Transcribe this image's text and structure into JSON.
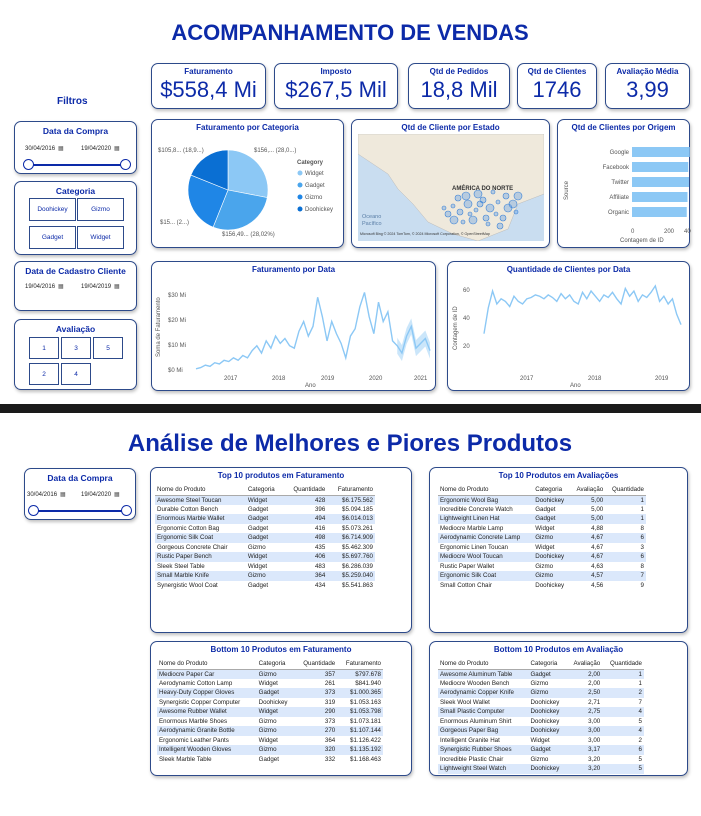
{
  "top_title": "ACOMPANHAMENTO DE VENDAS",
  "filters_label": "Filtros",
  "kpis": [
    {
      "label": "Faturamento",
      "value": "$558,4 Mi"
    },
    {
      "label": "Imposto",
      "value": "$267,5 Mil"
    },
    {
      "label": "Qtd de Pedidos",
      "value": "18,8 Mil"
    },
    {
      "label": "Qtd de Clientes",
      "value": "1746"
    },
    {
      "label": "Avaliação Média",
      "value": "3,99"
    }
  ],
  "slicer_purchase": {
    "title": "Data da Compra",
    "from": "30/04/2016",
    "to": "19/04/2020"
  },
  "slicer_category": {
    "title": "Categoria",
    "items": [
      "Doohickey",
      "Gizmo",
      "Gadget",
      "Widget"
    ]
  },
  "slicer_register": {
    "title": "Data de Cadastro Cliente",
    "from": "19/04/2016",
    "to": "19/04/2019"
  },
  "slicer_rating": {
    "title": "Avaliação",
    "items": [
      "1",
      "3",
      "5",
      "2",
      "4"
    ]
  },
  "pie": {
    "title": "Faturamento por Categoria",
    "legend_title": "Category",
    "legend": [
      "Widget",
      "Gadget",
      "Gizmo",
      "Doohickey"
    ],
    "labels": [
      "$105,8... (18,9...)",
      "$156,... (28,0...)",
      "$15... (2...)",
      "$156,49... (28,02%)"
    ],
    "colors": [
      "#8cc8f5",
      "#4aa5ec",
      "#1f86e6",
      "#0a6fd3"
    ]
  },
  "map": {
    "title": "Qtd de Cliente por Estado",
    "region_label": "AMÉRICA DO NORTE",
    "ocean_label": "Oceano Pacífico",
    "attribution": "Microsoft Bing   © 2024 TomTom, © 2024 Microsoft Corporation, © OpenStreetMap"
  },
  "origin": {
    "title": "Qtd de Clientes por Origem",
    "ylabel": "Source",
    "xlabel": "Contagem de ID",
    "ticks": [
      "0",
      "200",
      "400"
    ]
  },
  "line1": {
    "title": "Faturamento por Data",
    "ylabel": "Soma de Faturamento",
    "xlabel": "Ano",
    "yticks": [
      "$30 Mi",
      "$20 Mi",
      "$10 Mi",
      "$0 Mi"
    ],
    "xticks": [
      "2017",
      "2018",
      "2019",
      "2020",
      "2021"
    ]
  },
  "line2": {
    "title": "Quantidade de Clientes por Data",
    "ylabel": "Contagem de ID",
    "xlabel": "Ano",
    "yticks": [
      "60",
      "40",
      "20"
    ],
    "xticks": [
      "2017",
      "2018",
      "2019"
    ]
  },
  "chart_data": [
    {
      "type": "pie",
      "title": "Faturamento por Categoria",
      "categories": [
        "Widget",
        "Gadget",
        "Gizmo",
        "Doohickey"
      ],
      "values": [
        28.0,
        28.02,
        25.0,
        18.9
      ]
    },
    {
      "type": "bar",
      "title": "Qtd de Clientes por Origem",
      "categories": [
        "Google",
        "Facebook",
        "Twitter",
        "Affiliate",
        "Organic"
      ],
      "values": [
        385,
        375,
        380,
        370,
        365
      ],
      "xlim": [
        0,
        400
      ]
    },
    {
      "type": "line",
      "title": "Faturamento por Data",
      "x_range": [
        "2016",
        "2021"
      ],
      "ylim": [
        0,
        33
      ],
      "values": [
        0.5,
        1,
        2,
        1.5,
        3,
        2.5,
        4,
        3.5,
        5,
        4,
        6,
        5,
        8,
        10,
        7,
        12,
        9,
        14,
        11,
        13,
        10,
        9,
        16,
        20,
        14,
        18,
        30,
        22,
        12,
        20,
        15,
        11,
        5,
        14,
        17,
        26,
        32,
        22,
        15,
        28,
        20,
        24,
        12,
        10,
        7,
        14,
        18,
        9,
        11,
        13,
        8
      ]
    },
    {
      "type": "line",
      "title": "Quantidade de Clientes por Data",
      "x_range": [
        "2016",
        "2019"
      ],
      "ylim": [
        0,
        65
      ],
      "values": [
        25,
        45,
        58,
        48,
        52,
        50,
        46,
        54,
        50,
        48,
        52,
        53,
        55,
        54,
        52,
        55,
        53,
        50,
        56,
        52,
        55,
        50,
        48,
        57,
        52,
        58,
        54,
        50,
        55,
        53,
        57,
        52,
        48,
        60,
        54,
        58,
        50,
        55,
        53,
        57,
        62,
        50,
        54,
        48,
        52,
        40,
        32
      ]
    }
  ],
  "bottom_title": "Análise de Melhores e Piores Produtos",
  "slicer_purchase2": {
    "title": "Data da Compra",
    "from": "30/04/2016",
    "to": "19/04/2020"
  },
  "top_revenue": {
    "title": "Top 10 produtos em Faturamento",
    "headers": [
      "Nome do Produto",
      "Categoria",
      "Quantidade",
      "Faturamento"
    ],
    "rows": [
      [
        "Awesome Steel Toucan",
        "Widget",
        "428",
        "$6.175.562"
      ],
      [
        "Durable Cotton Bench",
        "Gadget",
        "396",
        "$5.094.185"
      ],
      [
        "Enormous Marble Wallet",
        "Gadget",
        "494",
        "$6.014.013"
      ],
      [
        "Ergonomic Cotton Bag",
        "Gadget",
        "416",
        "$5.073.261"
      ],
      [
        "Ergonomic Silk Coat",
        "Gadget",
        "498",
        "$6.714.909"
      ],
      [
        "Gorgeous Concrete Chair",
        "Gizmo",
        "435",
        "$5.462.309"
      ],
      [
        "Rustic Paper Bench",
        "Widget",
        "406",
        "$5.697.760"
      ],
      [
        "Sleek Steel Table",
        "Widget",
        "483",
        "$6.286.039"
      ],
      [
        "Small Marble Knife",
        "Gizmo",
        "364",
        "$5.259.040"
      ],
      [
        "Synergistic Wool Coat",
        "Gadget",
        "434",
        "$5.541.863"
      ]
    ]
  },
  "top_rating": {
    "title": "Top 10 Produtos em Avaliações",
    "headers": [
      "Nome do Produto",
      "Categoria",
      "Avaliação",
      "Quantidade"
    ],
    "rows": [
      [
        "Ergonomic Wool Bag",
        "Doohickey",
        "5,00",
        "1"
      ],
      [
        "Incredible Concrete Watch",
        "Gadget",
        "5,00",
        "1"
      ],
      [
        "Lightweight Linen Hat",
        "Gadget",
        "5,00",
        "1"
      ],
      [
        "Mediocre Marble Lamp",
        "Widget",
        "4,88",
        "8"
      ],
      [
        "Aerodynamic Concrete Lamp",
        "Gizmo",
        "4,67",
        "6"
      ],
      [
        "Ergonomic Linen Toucan",
        "Widget",
        "4,67",
        "3"
      ],
      [
        "Mediocre Wool Toucan",
        "Doohickey",
        "4,67",
        "6"
      ],
      [
        "Rustic Paper Wallet",
        "Gizmo",
        "4,63",
        "8"
      ],
      [
        "Ergonomic Silk Coat",
        "Gizmo",
        "4,57",
        "7"
      ],
      [
        "Small Cotton Chair",
        "Doohickey",
        "4,56",
        "9"
      ]
    ]
  },
  "bottom_revenue": {
    "title": "Bottom 10 Produtos em Faturamento",
    "headers": [
      "Nome do Produto",
      "Categoria",
      "Quantidade",
      "Faturamento"
    ],
    "rows": [
      [
        "Mediocre Paper Car",
        "Gizmo",
        "357",
        "$797.678"
      ],
      [
        "Aerodynamic Cotton Lamp",
        "Widget",
        "261",
        "$841.940"
      ],
      [
        "Heavy-Duty Copper Gloves",
        "Gadget",
        "373",
        "$1.000.365"
      ],
      [
        "Synergistic Copper Computer",
        "Doohickey",
        "319",
        "$1.053.163"
      ],
      [
        "Awesome Rubber Wallet",
        "Widget",
        "290",
        "$1.053.798"
      ],
      [
        "Enormous Marble Shoes",
        "Gizmo",
        "373",
        "$1.073.181"
      ],
      [
        "Aerodynamic Granite Bottle",
        "Gizmo",
        "270",
        "$1.107.144"
      ],
      [
        "Ergonomic Leather Pants",
        "Widget",
        "364",
        "$1.126.422"
      ],
      [
        "Intelligent Wooden Gloves",
        "Gizmo",
        "320",
        "$1.135.192"
      ],
      [
        "Sleek Marble Table",
        "Gadget",
        "332",
        "$1.168.463"
      ]
    ]
  },
  "bottom_rating": {
    "title": "Bottom 10 Produtos em Avaliação",
    "headers": [
      "Nome do Produto",
      "Categoria",
      "Avaliação",
      "Quantidade"
    ],
    "rows": [
      [
        "Awesome Aluminum Table",
        "Gadget",
        "2,00",
        "1"
      ],
      [
        "Mediocre Wooden Bench",
        "Gizmo",
        "2,00",
        "1"
      ],
      [
        "Aerodynamic Copper Knife",
        "Gizmo",
        "2,50",
        "2"
      ],
      [
        "Sleek Wool Wallet",
        "Doohickey",
        "2,71",
        "7"
      ],
      [
        "Small Plastic Computer",
        "Doohickey",
        "2,75",
        "4"
      ],
      [
        "Enormous Aluminum Shirt",
        "Doohickey",
        "3,00",
        "5"
      ],
      [
        "Gorgeous Paper Bag",
        "Doohickey",
        "3,00",
        "4"
      ],
      [
        "Intelligent Granite Hat",
        "Widget",
        "3,00",
        "2"
      ],
      [
        "Synergistic Rubber Shoes",
        "Gadget",
        "3,17",
        "6"
      ],
      [
        "Incredible Plastic Chair",
        "Gizmo",
        "3,20",
        "5"
      ],
      [
        "Lightweight Steel Watch",
        "Doohickey",
        "3,20",
        "5"
      ]
    ]
  }
}
